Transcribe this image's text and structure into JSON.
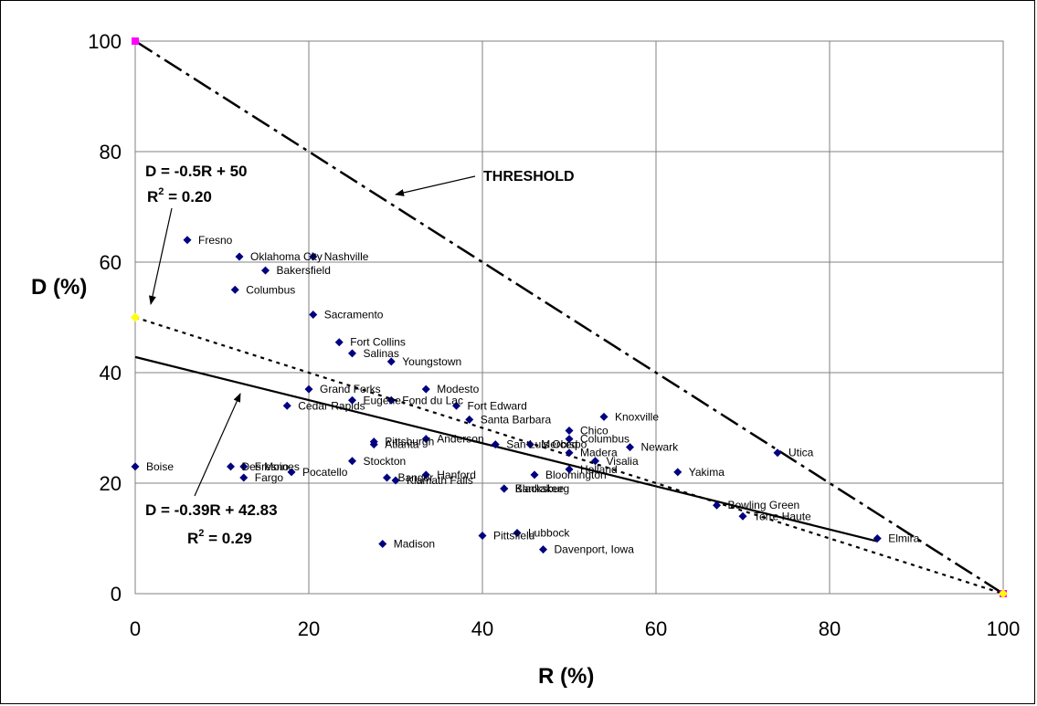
{
  "chart_data": {
    "type": "scatter",
    "xlabel": "R (%)",
    "ylabel": "D (%)",
    "xlim": [
      0,
      100
    ],
    "ylim": [
      0,
      100
    ],
    "x_ticks": [
      "0",
      "20",
      "40",
      "60",
      "80",
      "100"
    ],
    "y_ticks": [
      "0",
      "20",
      "40",
      "60",
      "80",
      "100"
    ],
    "grid": true,
    "colors": {
      "points": "#000080",
      "threshold_ends": "#ff00ff",
      "dashed_ends": "#ffff00"
    },
    "points": [
      {
        "label": "Fresno",
        "x": 6,
        "y": 64
      },
      {
        "label": "Oklahoma City",
        "x": 12,
        "y": 61
      },
      {
        "label": "Nashville",
        "x": 20.5,
        "y": 61
      },
      {
        "label": "Bakersfield",
        "x": 15,
        "y": 58.5
      },
      {
        "label": "Columbus",
        "x": 11.5,
        "y": 55
      },
      {
        "label": "Sacramento",
        "x": 20.5,
        "y": 50.5
      },
      {
        "label": "Fort Collins",
        "x": 23.5,
        "y": 45.5
      },
      {
        "label": "Salinas",
        "x": 25,
        "y": 43.5
      },
      {
        "label": "Youngstown",
        "x": 29.5,
        "y": 42
      },
      {
        "label": "Modesto",
        "x": 33.5,
        "y": 37
      },
      {
        "label": "Grand Forks",
        "x": 20,
        "y": 37
      },
      {
        "label": "Eugene",
        "x": 25,
        "y": 35
      },
      {
        "label": "Fond du Lac",
        "x": 29.5,
        "y": 35
      },
      {
        "label": "Cedar Rapids",
        "x": 17.5,
        "y": 34
      },
      {
        "label": "Fort Edward",
        "x": 37,
        "y": 34
      },
      {
        "label": "Santa Barbara",
        "x": 38.5,
        "y": 31.5
      },
      {
        "label": "Knoxville",
        "x": 54,
        "y": 32
      },
      {
        "label": "Chico",
        "x": 50,
        "y": 29.5
      },
      {
        "label": "Columbus",
        "x": 50,
        "y": 28
      },
      {
        "label": "Pittsburgh",
        "x": 27.5,
        "y": 27.5
      },
      {
        "label": "Atlanta",
        "x": 27.5,
        "y": 27
      },
      {
        "label": "Anderson",
        "x": 33.5,
        "y": 28
      },
      {
        "label": "San Luis Obispo",
        "x": 41.5,
        "y": 27
      },
      {
        "label": "Merced",
        "x": 45.5,
        "y": 27
      },
      {
        "label": "Madera",
        "x": 50,
        "y": 25.5
      },
      {
        "label": "Newark",
        "x": 57,
        "y": 26.5
      },
      {
        "label": "Visalia",
        "x": 53,
        "y": 24
      },
      {
        "label": "Holland",
        "x": 50,
        "y": 22.5
      },
      {
        "label": "Boise",
        "x": 0,
        "y": 23
      },
      {
        "label": "Des Moines",
        "x": 11,
        "y": 23
      },
      {
        "label": "Fresno",
        "x": 12.5,
        "y": 23
      },
      {
        "label": "Fargo",
        "x": 12.5,
        "y": 21
      },
      {
        "label": "Pocatello",
        "x": 18,
        "y": 22
      },
      {
        "label": "Stockton",
        "x": 25,
        "y": 24
      },
      {
        "label": "Hanford",
        "x": 33.5,
        "y": 21.5
      },
      {
        "label": "Bangor",
        "x": 29,
        "y": 21
      },
      {
        "label": "Klamath Falls",
        "x": 30,
        "y": 20.5
      },
      {
        "label": "Bloomington",
        "x": 46,
        "y": 21.5
      },
      {
        "label": "Blacksburg",
        "x": 42.5,
        "y": 19
      },
      {
        "label": "Kankakee",
        "x": 42.5,
        "y": 19
      },
      {
        "label": "Yakima",
        "x": 62.5,
        "y": 22
      },
      {
        "label": "Utica",
        "x": 74,
        "y": 25.5
      },
      {
        "label": "Bowling Green",
        "x": 67,
        "y": 16
      },
      {
        "label": "Terre Haute",
        "x": 70,
        "y": 14
      },
      {
        "label": "Elmira",
        "x": 85.5,
        "y": 10
      },
      {
        "label": "Madison",
        "x": 28.5,
        "y": 9
      },
      {
        "label": "Pittsfield",
        "x": 40,
        "y": 10.5
      },
      {
        "label": "Lubbock",
        "x": 44,
        "y": 11
      },
      {
        "label": "Davenport, Iowa",
        "x": 47,
        "y": 8
      }
    ],
    "lines": [
      {
        "style": "dash-dot",
        "x": [
          0,
          100
        ],
        "y": [
          100,
          0
        ]
      },
      {
        "style": "dotted",
        "x": [
          0,
          100
        ],
        "y": [
          50,
          0
        ]
      },
      {
        "style": "solid",
        "x": [
          0,
          85.5
        ],
        "y": [
          42.83,
          9.48
        ]
      }
    ],
    "annotations": {
      "threshold": "THRESHOLD",
      "eq_dotted": "D = -0.5R + 50",
      "r2_dotted_prefix": "R",
      "r2_dotted_sup": "2",
      "r2_dotted_value": " = 0.20",
      "eq_solid": "D = -0.39R + 42.83",
      "r2_solid_prefix": "R",
      "r2_solid_sup": "2",
      "r2_solid_value": " = 0.29"
    }
  }
}
